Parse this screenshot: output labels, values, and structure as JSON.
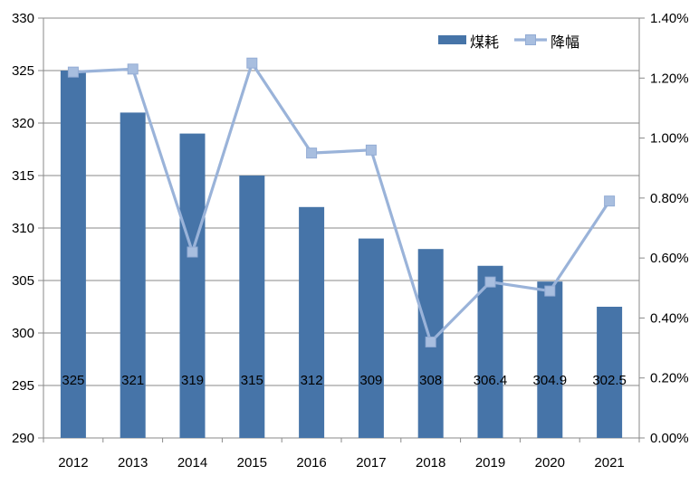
{
  "chart_data": {
    "type": "combo-bar-line",
    "title": "",
    "categories": [
      "2012",
      "2013",
      "2014",
      "2015",
      "2016",
      "2017",
      "2018",
      "2019",
      "2020",
      "2021"
    ],
    "series": [
      {
        "name": "煤耗",
        "type": "bar",
        "axis": "left",
        "color": "#4674A8",
        "values": [
          325,
          321,
          319,
          315,
          312,
          309,
          308,
          306.4,
          304.9,
          302.5
        ],
        "data_labels": [
          "325",
          "321",
          "319",
          "315",
          "312",
          "309",
          "308",
          "306.4",
          "304.9",
          "302.5"
        ]
      },
      {
        "name": "降幅",
        "type": "line",
        "axis": "right",
        "color": "#9AB3D9",
        "marker": "square",
        "marker_fill": "#A8BEDF",
        "marker_stroke": "#93ACD4",
        "values": [
          1.22,
          1.23,
          0.62,
          1.25,
          0.95,
          0.96,
          0.32,
          0.52,
          0.49,
          0.79
        ]
      }
    ],
    "left_axis": {
      "min": 290,
      "max": 330,
      "step": 5,
      "tick_labels": [
        "290",
        "295",
        "300",
        "305",
        "310",
        "315",
        "320",
        "325",
        "330"
      ]
    },
    "right_axis": {
      "min": 0,
      "max": 1.4,
      "step": 0.2,
      "tick_labels": [
        "0.00%",
        "0.20%",
        "0.40%",
        "0.60%",
        "0.80%",
        "1.00%",
        "1.20%",
        "1.40%"
      ]
    },
    "legend": {
      "position": "top-right-inside",
      "items": [
        "煤耗",
        "降幅"
      ]
    },
    "grid": "horizontal-only",
    "colors": {
      "grid": "#8A8A8A",
      "axis": "#8A8A8A",
      "text": "#000000",
      "background": "#FFFFFF"
    }
  }
}
